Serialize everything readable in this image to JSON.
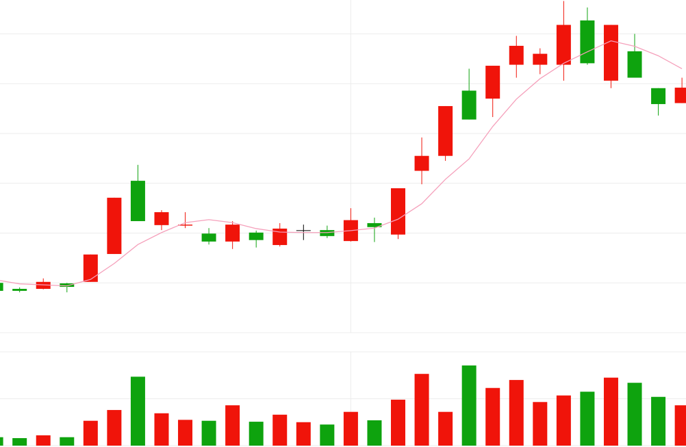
{
  "chart_data": [
    {
      "type": "candlestick",
      "x": [
        1,
        2,
        3,
        4,
        5,
        6,
        7,
        8,
        9,
        10,
        11,
        12,
        13,
        14,
        15,
        16,
        17,
        18,
        19,
        20,
        21,
        22,
        23,
        24,
        25,
        26,
        27,
        28,
        29,
        30
      ],
      "open": [
        10.0,
        8.8,
        8.8,
        9.9,
        10.2,
        15.8,
        30.5,
        21.6,
        21.5,
        19.9,
        18.3,
        20.1,
        17.6,
        20.5,
        20.6,
        18.4,
        22.0,
        19.7,
        32.5,
        35.5,
        48.6,
        47.0,
        53.8,
        53.8,
        53.8,
        62.7,
        50.6,
        56.5,
        49.1,
        46.1
      ],
      "high": [
        10.5,
        9.1,
        10.9,
        10.0,
        15.7,
        27.1,
        33.7,
        24.6,
        24.2,
        21.0,
        22.4,
        20.5,
        22.0,
        21.7,
        21.5,
        25.0,
        23.1,
        29.0,
        39.2,
        45.5,
        53.0,
        53.6,
        59.6,
        57.1,
        66.6,
        65.3,
        61.8,
        60.0,
        49.1,
        51.2
      ],
      "low": [
        8.1,
        8.1,
        8.7,
        8.1,
        10.2,
        15.8,
        22.4,
        20.6,
        21.0,
        17.7,
        16.8,
        17.1,
        17.3,
        18.6,
        19.0,
        18.3,
        18.2,
        18.8,
        29.8,
        34.5,
        42.8,
        43.3,
        51.2,
        51.9,
        50.6,
        53.8,
        49.1,
        51.2,
        43.6,
        46.1
      ],
      "close": [
        8.4,
        8.4,
        10.2,
        9.2,
        15.7,
        27.1,
        22.4,
        24.2,
        21.7,
        18.3,
        21.7,
        18.6,
        20.9,
        20.5,
        19.4,
        22.6,
        21.2,
        29.0,
        35.5,
        45.5,
        42.8,
        53.6,
        57.6,
        56.0,
        61.8,
        54.1,
        61.8,
        51.2,
        45.9,
        49.2
      ],
      "up_color": "#f0140a",
      "down_color": "#0ea30e",
      "flat_color": "#000000",
      "ma": {
        "color": "#f5a0bb",
        "values": [
          10.6,
          9.8,
          9.6,
          9.4,
          10.7,
          13.9,
          17.7,
          20.1,
          22.1,
          22.7,
          22.1,
          20.9,
          20.2,
          20.1,
          20.1,
          20.5,
          21.0,
          22.8,
          25.9,
          30.8,
          34.9,
          41.4,
          46.9,
          51.0,
          54.1,
          56.4,
          58.6,
          57.5,
          55.6,
          53.0
        ]
      },
      "xlim": [
        1.17,
        30.17
      ],
      "xticks": [
        16
      ],
      "ylim": [
        0,
        66.8
      ],
      "yticks": [
        0,
        10,
        20,
        30,
        40,
        50,
        60
      ],
      "grid": true
    },
    {
      "type": "bar",
      "x": [
        1,
        2,
        3,
        4,
        5,
        6,
        7,
        8,
        9,
        10,
        11,
        12,
        13,
        14,
        15,
        16,
        17,
        18,
        19,
        20,
        21,
        22,
        23,
        24,
        25,
        26,
        27,
        28,
        29,
        30
      ],
      "values": [
        1.8,
        1.6,
        2.2,
        1.8,
        5.3,
        7.6,
        14.7,
        6.9,
        5.5,
        5.3,
        8.6,
        5.1,
        6.6,
        5.0,
        4.5,
        7.2,
        5.4,
        9.8,
        15.3,
        7.2,
        17.1,
        12.3,
        14.0,
        9.3,
        10.7,
        11.5,
        14.5,
        13.4,
        10.4,
        8.6
      ],
      "up_color": "#f0140a",
      "down_color": "#0ea30e",
      "xlim": [
        1.17,
        30.17
      ],
      "xticks": [
        16
      ],
      "ylim": [
        0,
        20
      ],
      "yticks": [
        0,
        10,
        20
      ],
      "grid": true
    }
  ]
}
